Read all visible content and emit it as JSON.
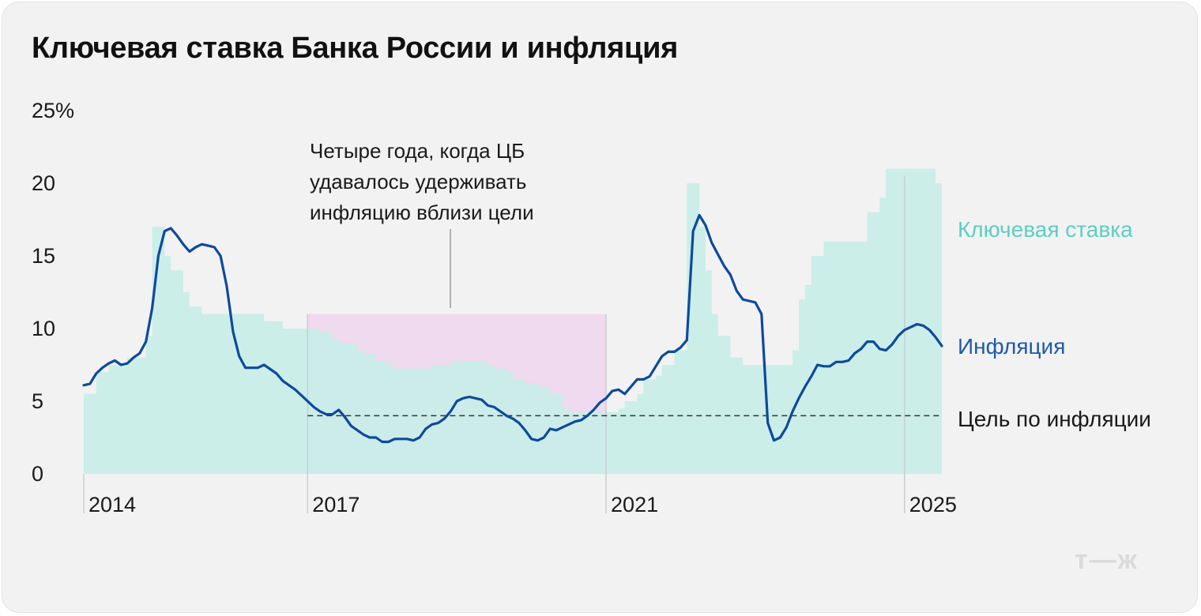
{
  "title": "Ключевая ставка Банка России и инфляция",
  "logo": "т—ж",
  "chart_data": {
    "type": "area+line",
    "title": "Ключевая ставка Банка России и инфляция",
    "ylim": [
      0,
      25
    ],
    "y_ticks": [
      "0",
      "5",
      "10",
      "15",
      "20",
      "25%"
    ],
    "y_tick_values": [
      0,
      5,
      10,
      15,
      20,
      25
    ],
    "x_range": [
      "2014-01",
      "2025-07"
    ],
    "x_ticks": [
      {
        "label": "2014",
        "date": "2014-01"
      },
      {
        "label": "2017",
        "date": "2017-01"
      },
      {
        "label": "2021",
        "date": "2021-01"
      },
      {
        "label": "2025",
        "date": "2025-01"
      }
    ],
    "inflation_target": 4,
    "target_label": "Цель по инфляции",
    "highlight": {
      "from": "2017-01",
      "to": "2021-01",
      "upper": 11,
      "color": "#f8e6f5",
      "annotation": [
        "Четыре года, когда ЦБ",
        "удавалось удерживать",
        "инфляцию вблизи цели"
      ]
    },
    "series": [
      {
        "name": "Ключевая ставка",
        "kind": "step-area",
        "color": "#c6ede8",
        "label_color": "#5ccfc1",
        "points": [
          [
            "2014-01",
            5.5
          ],
          [
            "2014-03",
            7
          ],
          [
            "2014-05",
            7.5
          ],
          [
            "2014-08",
            8
          ],
          [
            "2014-11",
            9.5
          ],
          [
            "2014-12",
            17
          ],
          [
            "2015-02",
            15
          ],
          [
            "2015-03",
            14
          ],
          [
            "2015-05",
            12.5
          ],
          [
            "2015-06",
            11.5
          ],
          [
            "2015-08",
            11
          ],
          [
            "2016-06",
            10.5
          ],
          [
            "2016-09",
            10
          ],
          [
            "2017-03",
            9.75
          ],
          [
            "2017-05",
            9.25
          ],
          [
            "2017-06",
            9
          ],
          [
            "2017-09",
            8.5
          ],
          [
            "2017-10",
            8.25
          ],
          [
            "2017-12",
            7.75
          ],
          [
            "2018-02",
            7.5
          ],
          [
            "2018-03",
            7.25
          ],
          [
            "2018-09",
            7.5
          ],
          [
            "2018-12",
            7.75
          ],
          [
            "2019-06",
            7.5
          ],
          [
            "2019-07",
            7.25
          ],
          [
            "2019-09",
            7
          ],
          [
            "2019-10",
            6.5
          ],
          [
            "2019-12",
            6.25
          ],
          [
            "2020-02",
            6
          ],
          [
            "2020-04",
            5.5
          ],
          [
            "2020-06",
            4.5
          ],
          [
            "2020-07",
            4.25
          ],
          [
            "2021-03",
            4.5
          ],
          [
            "2021-04",
            5
          ],
          [
            "2021-06",
            5.5
          ],
          [
            "2021-07",
            6.5
          ],
          [
            "2021-09",
            6.75
          ],
          [
            "2021-10",
            7.5
          ],
          [
            "2021-12",
            8.5
          ],
          [
            "2022-02",
            20
          ],
          [
            "2022-04",
            17
          ],
          [
            "2022-05",
            14
          ],
          [
            "2022-06",
            11
          ],
          [
            "2022-07",
            9.5
          ],
          [
            "2022-09",
            8
          ],
          [
            "2022-11",
            7.5
          ],
          [
            "2023-07",
            8.5
          ],
          [
            "2023-08",
            12
          ],
          [
            "2023-09",
            13
          ],
          [
            "2023-10",
            15
          ],
          [
            "2023-12",
            16
          ],
          [
            "2024-07",
            18
          ],
          [
            "2024-09",
            19
          ],
          [
            "2024-10",
            21
          ],
          [
            "2025-06",
            20
          ],
          [
            "2025-07",
            18
          ],
          [
            "2025-09",
            18
          ]
        ]
      },
      {
        "name": "Инфляция",
        "kind": "line",
        "color": "#0d4a9c",
        "label_color": "#1f5aa8",
        "points": [
          [
            "2014-01",
            6.1
          ],
          [
            "2014-02",
            6.2
          ],
          [
            "2014-03",
            6.9
          ],
          [
            "2014-04",
            7.3
          ],
          [
            "2014-05",
            7.6
          ],
          [
            "2014-06",
            7.8
          ],
          [
            "2014-07",
            7.5
          ],
          [
            "2014-08",
            7.6
          ],
          [
            "2014-09",
            8.0
          ],
          [
            "2014-10",
            8.3
          ],
          [
            "2014-11",
            9.1
          ],
          [
            "2014-12",
            11.4
          ],
          [
            "2015-01",
            15.0
          ],
          [
            "2015-02",
            16.7
          ],
          [
            "2015-03",
            16.9
          ],
          [
            "2015-04",
            16.4
          ],
          [
            "2015-05",
            15.8
          ],
          [
            "2015-06",
            15.3
          ],
          [
            "2015-07",
            15.6
          ],
          [
            "2015-08",
            15.8
          ],
          [
            "2015-09",
            15.7
          ],
          [
            "2015-10",
            15.6
          ],
          [
            "2015-11",
            15.0
          ],
          [
            "2015-12",
            12.9
          ],
          [
            "2016-01",
            9.8
          ],
          [
            "2016-02",
            8.1
          ],
          [
            "2016-03",
            7.3
          ],
          [
            "2016-04",
            7.3
          ],
          [
            "2016-05",
            7.3
          ],
          [
            "2016-06",
            7.5
          ],
          [
            "2016-07",
            7.2
          ],
          [
            "2016-08",
            6.9
          ],
          [
            "2016-09",
            6.4
          ],
          [
            "2016-10",
            6.1
          ],
          [
            "2016-11",
            5.8
          ],
          [
            "2016-12",
            5.4
          ],
          [
            "2017-01",
            5.0
          ],
          [
            "2017-02",
            4.6
          ],
          [
            "2017-03",
            4.3
          ],
          [
            "2017-04",
            4.1
          ],
          [
            "2017-05",
            4.1
          ],
          [
            "2017-06",
            4.4
          ],
          [
            "2017-07",
            3.9
          ],
          [
            "2017-08",
            3.3
          ],
          [
            "2017-09",
            3.0
          ],
          [
            "2017-10",
            2.7
          ],
          [
            "2017-11",
            2.5
          ],
          [
            "2017-12",
            2.5
          ],
          [
            "2018-01",
            2.2
          ],
          [
            "2018-02",
            2.2
          ],
          [
            "2018-03",
            2.4
          ],
          [
            "2018-04",
            2.4
          ],
          [
            "2018-05",
            2.4
          ],
          [
            "2018-06",
            2.3
          ],
          [
            "2018-07",
            2.5
          ],
          [
            "2018-08",
            3.1
          ],
          [
            "2018-09",
            3.4
          ],
          [
            "2018-10",
            3.5
          ],
          [
            "2018-11",
            3.8
          ],
          [
            "2018-12",
            4.3
          ],
          [
            "2019-01",
            5.0
          ],
          [
            "2019-02",
            5.2
          ],
          [
            "2019-03",
            5.3
          ],
          [
            "2019-04",
            5.2
          ],
          [
            "2019-05",
            5.1
          ],
          [
            "2019-06",
            4.7
          ],
          [
            "2019-07",
            4.6
          ],
          [
            "2019-08",
            4.3
          ],
          [
            "2019-09",
            4.0
          ],
          [
            "2019-10",
            3.8
          ],
          [
            "2019-11",
            3.5
          ],
          [
            "2019-12",
            3.0
          ],
          [
            "2020-01",
            2.4
          ],
          [
            "2020-02",
            2.3
          ],
          [
            "2020-03",
            2.5
          ],
          [
            "2020-04",
            3.1
          ],
          [
            "2020-05",
            3.0
          ],
          [
            "2020-06",
            3.2
          ],
          [
            "2020-07",
            3.4
          ],
          [
            "2020-08",
            3.6
          ],
          [
            "2020-09",
            3.7
          ],
          [
            "2020-10",
            4.0
          ],
          [
            "2020-11",
            4.4
          ],
          [
            "2020-12",
            4.9
          ],
          [
            "2021-01",
            5.2
          ],
          [
            "2021-02",
            5.7
          ],
          [
            "2021-03",
            5.8
          ],
          [
            "2021-04",
            5.5
          ],
          [
            "2021-05",
            6.0
          ],
          [
            "2021-06",
            6.5
          ],
          [
            "2021-07",
            6.5
          ],
          [
            "2021-08",
            6.7
          ],
          [
            "2021-09",
            7.4
          ],
          [
            "2021-10",
            8.1
          ],
          [
            "2021-11",
            8.4
          ],
          [
            "2021-12",
            8.4
          ],
          [
            "2022-01",
            8.7
          ],
          [
            "2022-02",
            9.2
          ],
          [
            "2022-03",
            16.7
          ],
          [
            "2022-04",
            17.8
          ],
          [
            "2022-05",
            17.1
          ],
          [
            "2022-06",
            15.9
          ],
          [
            "2022-07",
            15.1
          ],
          [
            "2022-08",
            14.3
          ],
          [
            "2022-09",
            13.7
          ],
          [
            "2022-10",
            12.6
          ],
          [
            "2022-11",
            12.0
          ],
          [
            "2022-12",
            11.9
          ],
          [
            "2023-01",
            11.8
          ],
          [
            "2023-02",
            11.0
          ],
          [
            "2023-03",
            3.5
          ],
          [
            "2023-04",
            2.3
          ],
          [
            "2023-05",
            2.5
          ],
          [
            "2023-06",
            3.2
          ],
          [
            "2023-07",
            4.3
          ],
          [
            "2023-08",
            5.2
          ],
          [
            "2023-09",
            6.0
          ],
          [
            "2023-10",
            6.7
          ],
          [
            "2023-11",
            7.5
          ],
          [
            "2023-12",
            7.4
          ],
          [
            "2024-01",
            7.4
          ],
          [
            "2024-02",
            7.7
          ],
          [
            "2024-03",
            7.7
          ],
          [
            "2024-04",
            7.8
          ],
          [
            "2024-05",
            8.3
          ],
          [
            "2024-06",
            8.6
          ],
          [
            "2024-07",
            9.1
          ],
          [
            "2024-08",
            9.1
          ],
          [
            "2024-09",
            8.6
          ],
          [
            "2024-10",
            8.5
          ],
          [
            "2024-11",
            8.9
          ],
          [
            "2024-12",
            9.5
          ],
          [
            "2025-01",
            9.9
          ],
          [
            "2025-02",
            10.1
          ],
          [
            "2025-03",
            10.3
          ],
          [
            "2025-04",
            10.2
          ],
          [
            "2025-05",
            9.9
          ],
          [
            "2025-06",
            9.4
          ],
          [
            "2025-07",
            8.8
          ]
        ]
      }
    ]
  }
}
